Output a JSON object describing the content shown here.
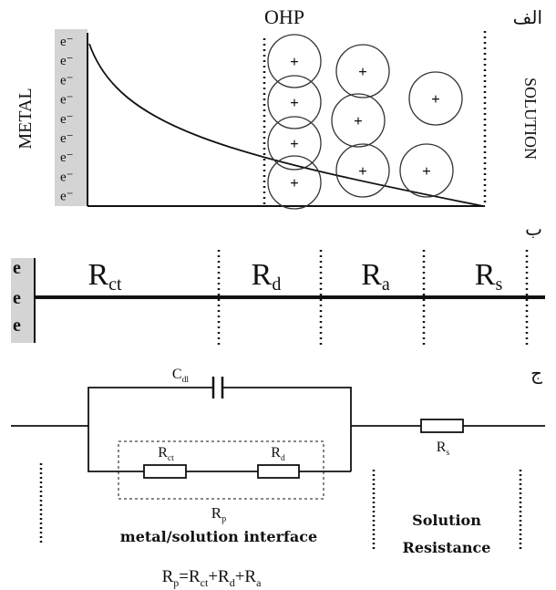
{
  "panel_a": {
    "label": "الف",
    "ohp": "OHP",
    "metal": "METAL",
    "solution": "SOLUTION",
    "electrons": [
      "e⁻",
      "e⁻",
      "e⁻",
      "e⁻",
      "e⁻",
      "e⁻",
      "e⁻",
      "e⁻",
      "e⁻"
    ],
    "cations": [
      "+",
      "+",
      "+",
      "+",
      "+",
      "+",
      "+",
      "+",
      "+"
    ]
  },
  "panel_b": {
    "label": "ب",
    "electrons": [
      "e",
      "e",
      "e"
    ],
    "resistances": [
      {
        "text": "R",
        "sub": "ct"
      },
      {
        "text": "R",
        "sub": "d"
      },
      {
        "text": "R",
        "sub": "a"
      },
      {
        "text": "R",
        "sub": "s"
      }
    ]
  },
  "panel_c": {
    "label": "ج",
    "capacitor": {
      "text": "C",
      "sub": "dl"
    },
    "r_ct": {
      "text": "R",
      "sub": "ct"
    },
    "r_d": {
      "text": "R",
      "sub": "d"
    },
    "r_s": {
      "text": "R",
      "sub": "s"
    },
    "r_p": {
      "text": "R",
      "sub": "p"
    },
    "interface": "metal/solution interface",
    "solution_resistance": [
      "Solution",
      "Resistance"
    ],
    "formula": [
      {
        "text": "R",
        "sub": "p"
      },
      {
        "text": "=R",
        "sub": "ct"
      },
      {
        "text": "+R",
        "sub": "d"
      },
      {
        "text": "+R",
        "sub": "a"
      }
    ]
  }
}
